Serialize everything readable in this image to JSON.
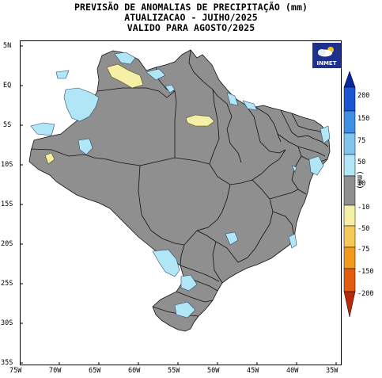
{
  "header": {
    "line1": "PREVISÃO DE ANOMALIAS DE PRECIPITAÇÃO (mm)",
    "line2": "ATUALIZACAO - JUIHO/2025",
    "line3": "VALIDO PARA AGOSTO/2025"
  },
  "logo": {
    "text": "INMET",
    "icon": "cloud-sun-icon"
  },
  "axes": {
    "lat_labels": [
      "5N",
      "EQ",
      "5S",
      "10S",
      "15S",
      "20S",
      "25S",
      "30S",
      "35S"
    ],
    "lon_labels": [
      "75W",
      "70W",
      "65W",
      "60W",
      "55W",
      "50W",
      "45W",
      "40W",
      "35W"
    ]
  },
  "legend": {
    "unit": "(mm)",
    "labels": [
      "200",
      "150",
      "75",
      "50",
      "10",
      "-10",
      "-50",
      "-75",
      "-150",
      "-200"
    ],
    "colors": {
      "above_200": "#08269e",
      "c150_200": "#1a55d4",
      "c75_150": "#3e8fe6",
      "c50_75": "#7fc6ef",
      "c10_50": "#b0e6f5",
      "neutral": "#8f8f8f",
      "cm50_m10": "#f6f0a6",
      "cm75_m50": "#f6c957",
      "cm150_m75": "#f19a1c",
      "cm200_m150": "#e35d10",
      "below_m200": "#b52a0a"
    }
  },
  "map": {
    "land_color": "#8f8f8f",
    "border_color": "#111111",
    "wet_color": "#b0e6f5",
    "dry_color": "#f6f0a6"
  }
}
